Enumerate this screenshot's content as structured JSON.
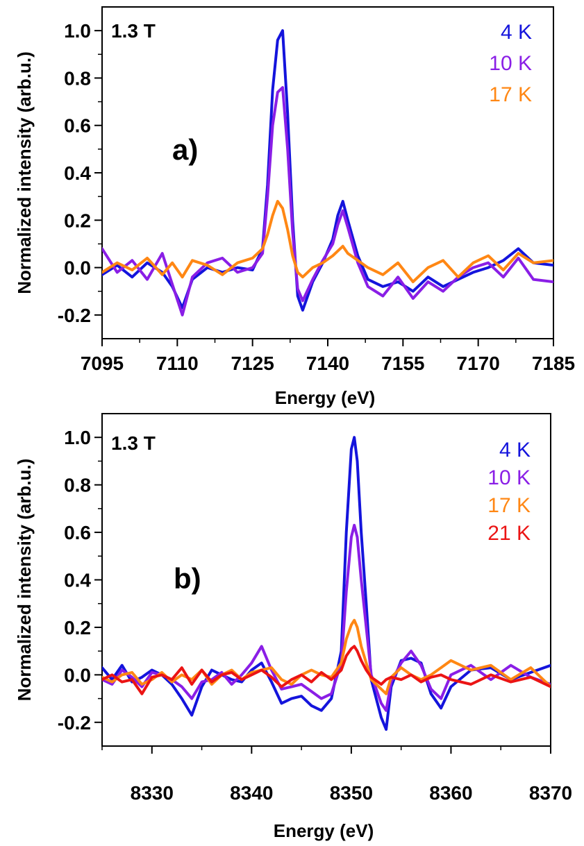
{
  "chart_data": [
    {
      "type": "line",
      "panel_label": "a)",
      "field_label": "1.3 T",
      "xlabel": "Energy (eV)",
      "ylabel": "Normalized intensity (arb.u.)",
      "xlim": [
        7095,
        7185
      ],
      "ylim": [
        -0.3,
        1.1
      ],
      "xticks": [
        7095,
        7110,
        7125,
        7140,
        7155,
        7170,
        7185
      ],
      "xtick_labels": [
        "7095",
        "7110",
        "7125",
        "7140",
        "7155",
        "7170",
        "7185"
      ],
      "yticks": [
        -0.2,
        0.0,
        0.2,
        0.4,
        0.6,
        0.8,
        1.0
      ],
      "ytick_labels": [
        "-0.2",
        "0.0",
        "0.2",
        "0.4",
        "0.6",
        "0.8",
        "1.0"
      ],
      "grid": false,
      "legend_position": "top-right",
      "series": [
        {
          "name": "4 K",
          "color": "#1414dc",
          "x": [
            7095,
            7098,
            7101,
            7104,
            7107,
            7109,
            7111,
            7113,
            7116,
            7119,
            7122,
            7125,
            7127,
            7128,
            7129,
            7130,
            7131,
            7132,
            7133,
            7134,
            7135,
            7137,
            7139,
            7141,
            7142,
            7143,
            7144,
            7146,
            7148,
            7151,
            7154,
            7157,
            7160,
            7163,
            7166,
            7169,
            7172,
            7175,
            7178,
            7181,
            7185
          ],
          "y": [
            -0.03,
            0.01,
            -0.04,
            0.02,
            -0.02,
            -0.08,
            -0.17,
            -0.05,
            0.0,
            -0.02,
            0.0,
            -0.01,
            0.08,
            0.35,
            0.75,
            0.96,
            1.0,
            0.65,
            0.2,
            -0.12,
            -0.18,
            -0.06,
            0.02,
            0.12,
            0.22,
            0.28,
            0.2,
            0.05,
            -0.05,
            -0.08,
            -0.06,
            -0.1,
            -0.04,
            -0.08,
            -0.05,
            -0.02,
            0.0,
            0.03,
            0.08,
            0.02,
            0.01
          ]
        },
        {
          "name": "10 K",
          "color": "#8a1ee6",
          "x": [
            7095,
            7098,
            7101,
            7104,
            7107,
            7109,
            7111,
            7113,
            7116,
            7119,
            7122,
            7125,
            7127,
            7128,
            7129,
            7130,
            7131,
            7132,
            7133,
            7134,
            7135,
            7137,
            7139,
            7141,
            7142,
            7143,
            7144,
            7146,
            7148,
            7151,
            7154,
            7157,
            7160,
            7163,
            7166,
            7169,
            7172,
            7175,
            7178,
            7181,
            7185
          ],
          "y": [
            0.08,
            -0.02,
            0.03,
            -0.05,
            0.06,
            -0.07,
            -0.2,
            -0.04,
            0.02,
            0.04,
            -0.02,
            0.0,
            0.06,
            0.3,
            0.6,
            0.74,
            0.76,
            0.5,
            0.15,
            -0.09,
            -0.14,
            -0.05,
            0.03,
            0.1,
            0.18,
            0.24,
            0.17,
            0.02,
            -0.08,
            -0.12,
            -0.04,
            -0.13,
            -0.06,
            -0.1,
            -0.04,
            0.0,
            0.02,
            -0.04,
            0.04,
            -0.05,
            -0.06
          ]
        },
        {
          "name": "17 K",
          "color": "#ff8714",
          "x": [
            7095,
            7098,
            7101,
            7104,
            7107,
            7109,
            7111,
            7113,
            7116,
            7119,
            7122,
            7125,
            7127,
            7128,
            7129,
            7130,
            7131,
            7132,
            7133,
            7134,
            7135,
            7137,
            7139,
            7141,
            7142,
            7143,
            7144,
            7146,
            7148,
            7151,
            7154,
            7157,
            7160,
            7163,
            7166,
            7169,
            7172,
            7175,
            7178,
            7181,
            7185
          ],
          "y": [
            -0.02,
            0.02,
            -0.01,
            0.04,
            -0.03,
            0.02,
            -0.04,
            0.03,
            0.01,
            -0.03,
            0.02,
            0.04,
            0.08,
            0.14,
            0.22,
            0.28,
            0.25,
            0.16,
            0.05,
            -0.02,
            -0.04,
            0.0,
            0.02,
            0.05,
            0.07,
            0.09,
            0.06,
            0.03,
            0.0,
            -0.03,
            0.02,
            -0.06,
            0.0,
            0.03,
            -0.04,
            0.02,
            0.05,
            -0.01,
            0.06,
            0.02,
            0.03
          ]
        }
      ]
    },
    {
      "type": "line",
      "panel_label": "b)",
      "field_label": "1.3 T",
      "xlabel": "Energy (eV)",
      "ylabel": "Normalized intensity (arb.u.)",
      "xlim": [
        8325,
        8370
      ],
      "ylim": [
        -0.3,
        1.1
      ],
      "xticks": [
        8330,
        8340,
        8350,
        8360,
        8370
      ],
      "xtick_labels": [
        "8330",
        "8340",
        "8350",
        "8360",
        "8370"
      ],
      "yticks": [
        -0.2,
        0.0,
        0.2,
        0.4,
        0.6,
        0.8,
        1.0
      ],
      "ytick_labels": [
        "-0.2",
        "0.0",
        "0.2",
        "0.4",
        "0.6",
        "0.8",
        "1.0"
      ],
      "grid": false,
      "legend_position": "top-right",
      "series": [
        {
          "name": "4 K",
          "color": "#1414dc",
          "x": [
            8325,
            8326,
            8327,
            8328,
            8329,
            8330,
            8331,
            8332,
            8333,
            8334,
            8335,
            8336,
            8337,
            8338,
            8339,
            8340,
            8341,
            8342,
            8343,
            8344,
            8345,
            8346,
            8347,
            8348,
            8349,
            8349.5,
            8350,
            8350.3,
            8350.6,
            8351,
            8351.5,
            8352,
            8353,
            8353.5,
            8354,
            8355,
            8356,
            8357,
            8358,
            8359,
            8360,
            8362,
            8364,
            8366,
            8368,
            8370
          ],
          "y": [
            0.03,
            -0.02,
            0.04,
            -0.03,
            -0.01,
            0.02,
            0.0,
            -0.04,
            -0.1,
            -0.17,
            -0.05,
            0.02,
            0.0,
            -0.02,
            -0.03,
            0.02,
            0.05,
            -0.03,
            -0.12,
            -0.1,
            -0.09,
            -0.13,
            -0.15,
            -0.1,
            0.1,
            0.6,
            0.95,
            1.0,
            0.9,
            0.6,
            0.3,
            -0.02,
            -0.18,
            -0.23,
            -0.05,
            0.06,
            0.07,
            0.05,
            -0.08,
            -0.14,
            -0.05,
            0.02,
            0.03,
            -0.02,
            0.01,
            0.04
          ]
        },
        {
          "name": "10 K",
          "color": "#8a1ee6",
          "x": [
            8325,
            8326,
            8327,
            8328,
            8329,
            8330,
            8331,
            8332,
            8333,
            8334,
            8335,
            8336,
            8337,
            8338,
            8339,
            8340,
            8341,
            8342,
            8343,
            8344,
            8345,
            8346,
            8347,
            8348,
            8349,
            8349.5,
            8350,
            8350.3,
            8350.6,
            8351,
            8351.5,
            8352,
            8353,
            8353.5,
            8354,
            8355,
            8356,
            8357,
            8358,
            8359,
            8360,
            8362,
            8364,
            8366,
            8368,
            8370
          ],
          "y": [
            -0.02,
            -0.04,
            0.02,
            -0.01,
            -0.05,
            0.01,
            0.0,
            -0.02,
            -0.05,
            -0.1,
            -0.03,
            -0.02,
            0.01,
            -0.04,
            0.0,
            0.05,
            0.12,
            0.02,
            -0.06,
            -0.05,
            -0.04,
            -0.07,
            -0.1,
            -0.08,
            0.05,
            0.35,
            0.58,
            0.63,
            0.58,
            0.4,
            0.2,
            0.0,
            -0.12,
            -0.15,
            -0.03,
            0.05,
            0.1,
            0.04,
            -0.06,
            -0.1,
            0.0,
            0.04,
            -0.02,
            0.04,
            -0.01,
            -0.04
          ]
        },
        {
          "name": "17 K",
          "color": "#ff8714",
          "x": [
            8325,
            8326,
            8327,
            8328,
            8329,
            8330,
            8331,
            8332,
            8333,
            8334,
            8335,
            8336,
            8337,
            8338,
            8339,
            8340,
            8341,
            8342,
            8343,
            8344,
            8345,
            8346,
            8347,
            8348,
            8349,
            8349.5,
            8350,
            8350.3,
            8350.6,
            8351,
            8351.5,
            8352,
            8353,
            8353.5,
            8354,
            8355,
            8356,
            8357,
            8358,
            8359,
            8360,
            8362,
            8364,
            8366,
            8368,
            8370
          ],
          "y": [
            -0.01,
            -0.03,
            0.0,
            0.01,
            -0.04,
            -0.02,
            0.01,
            -0.03,
            0.0,
            -0.02,
            0.02,
            -0.04,
            0.0,
            0.02,
            -0.02,
            0.01,
            0.02,
            0.03,
            -0.02,
            -0.04,
            0.0,
            0.02,
            0.0,
            -0.01,
            0.05,
            0.15,
            0.21,
            0.23,
            0.2,
            0.12,
            0.05,
            -0.02,
            -0.06,
            -0.08,
            -0.01,
            0.03,
            0.0,
            -0.02,
            0.0,
            0.03,
            0.06,
            0.02,
            0.04,
            -0.02,
            0.03,
            -0.05
          ]
        },
        {
          "name": "21 K",
          "color": "#eb1414",
          "x": [
            8325,
            8326,
            8327,
            8328,
            8329,
            8330,
            8331,
            8332,
            8333,
            8334,
            8335,
            8336,
            8337,
            8338,
            8339,
            8340,
            8341,
            8342,
            8343,
            8344,
            8345,
            8346,
            8347,
            8348,
            8349,
            8349.5,
            8350,
            8350.3,
            8350.6,
            8351,
            8351.5,
            8352,
            8353,
            8353.5,
            8354,
            8355,
            8356,
            8357,
            8358,
            8359,
            8360,
            8362,
            8364,
            8366,
            8368,
            8370
          ],
          "y": [
            -0.02,
            0.0,
            -0.03,
            -0.02,
            -0.08,
            -0.01,
            0.0,
            -0.02,
            0.03,
            -0.04,
            0.02,
            -0.03,
            0.0,
            0.01,
            -0.02,
            0.0,
            0.02,
            -0.01,
            -0.05,
            -0.02,
            0.0,
            -0.03,
            0.01,
            -0.02,
            0.02,
            0.08,
            0.11,
            0.12,
            0.1,
            0.06,
            0.02,
            -0.01,
            -0.04,
            -0.02,
            -0.01,
            -0.02,
            0.0,
            -0.03,
            -0.01,
            0.0,
            -0.02,
            -0.04,
            0.0,
            -0.03,
            -0.01,
            -0.05
          ]
        }
      ]
    }
  ]
}
